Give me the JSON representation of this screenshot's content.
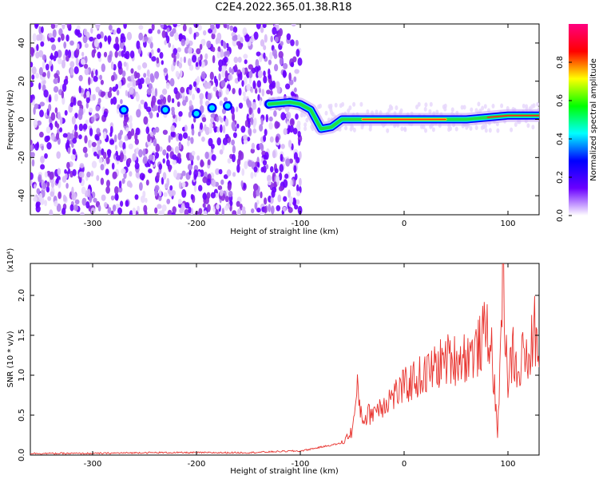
{
  "title": "C2E4.2022.365.01.38.R18",
  "chart_data": [
    {
      "type": "heatmap",
      "xlabel": "Height of straight line (km)",
      "ylabel": "Frequency (Hz)",
      "xlim": [
        -360,
        130
      ],
      "ylim": [
        -50,
        50
      ],
      "xticks": [
        -300,
        -200,
        -100,
        0,
        100
      ],
      "yticks": [
        -40,
        -20,
        0,
        20,
        40
      ],
      "noise_region_x": [
        -360,
        -100
      ],
      "signal_trace": {
        "x": [
          -270,
          -230,
          -200,
          -185,
          -170,
          -130,
          -110,
          -100,
          -90,
          -80,
          -70,
          -60,
          -40,
          -20,
          0,
          20,
          40,
          60,
          80,
          100,
          120,
          130
        ],
        "y": [
          5,
          5,
          3,
          6,
          7,
          8,
          9,
          8,
          5,
          -5,
          -4,
          0,
          0,
          0,
          0,
          0,
          0,
          0,
          1,
          2,
          2,
          2
        ]
      },
      "colorbar": {
        "label": "Normalized spectral amplitude",
        "range": [
          0.0,
          1.0
        ],
        "ticks": [
          "0.0",
          "0.2",
          "0.4",
          "0.6",
          "0.8"
        ],
        "colors": [
          "#ffffff",
          "#6a00ff",
          "#0000ff",
          "#00ffff",
          "#00ff00",
          "#ffff00",
          "#ff0000",
          "#ff0080"
        ]
      }
    },
    {
      "type": "line",
      "xlabel": "Height of straight line (km)",
      "ylabel": "SNR (10 * v/v)",
      "yscale_note": "(x10⁴)",
      "xlim": [
        -360,
        130
      ],
      "ylim": [
        0,
        2.4
      ],
      "xticks": [
        -300,
        -200,
        -100,
        0,
        100
      ],
      "yticks": [
        "0.0",
        "0.5",
        "1.0",
        "1.5",
        "2.0"
      ],
      "color": "#e8332e",
      "series": [
        {
          "x": [
            -360,
            -300,
            -250,
            -200,
            -150,
            -110,
            -100,
            -80,
            -60,
            -50,
            -45,
            -40,
            -30,
            -20,
            -10,
            0,
            10,
            20,
            30,
            40,
            50,
            60,
            70,
            80,
            85,
            90,
            95,
            100,
            105,
            110,
            115,
            120,
            125,
            130
          ],
          "values": [
            0.02,
            0.02,
            0.03,
            0.03,
            0.03,
            0.05,
            0.05,
            0.1,
            0.15,
            0.3,
            0.8,
            0.45,
            0.55,
            0.65,
            0.75,
            0.85,
            0.95,
            1.0,
            1.1,
            1.2,
            1.2,
            1.25,
            1.3,
            1.6,
            1.25,
            0.2,
            2.35,
            0.9,
            1.3,
            0.9,
            1.4,
            1.0,
            1.7,
            1.1
          ]
        }
      ]
    }
  ]
}
